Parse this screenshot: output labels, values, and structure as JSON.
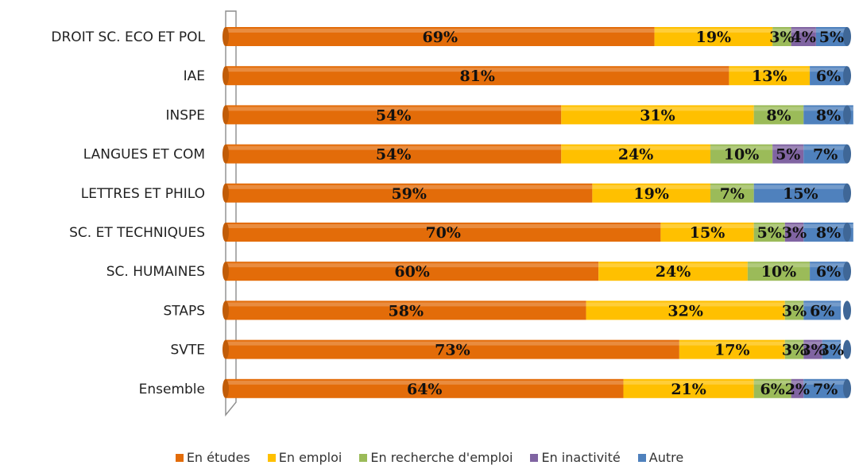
{
  "chart_data": {
    "type": "bar",
    "orientation": "horizontal",
    "stacked": true,
    "categories": [
      "DROIT SC. ECO ET POL",
      "IAE",
      "INSPE",
      "LANGUES ET COM",
      "LETTRES ET PHILO",
      "SC. ET TECHNIQUES",
      "SC. HUMAINES",
      "STAPS",
      "SVTE",
      "Ensemble"
    ],
    "series": [
      {
        "name": "En études",
        "color": "#E36C09",
        "values": [
          69,
          81,
          54,
          54,
          59,
          70,
          60,
          58,
          73,
          64
        ],
        "labels": [
          "69%",
          "81%",
          "54%",
          "54%",
          "59%",
          "70%",
          "60%",
          "58%",
          "73%",
          "64%"
        ]
      },
      {
        "name": "En emploi",
        "color": "#FFC000",
        "values": [
          19,
          13,
          31,
          24,
          19,
          15,
          24,
          32,
          17,
          21
        ],
        "labels": [
          "19%",
          "13%",
          "31%",
          "24%",
          "19%",
          "15%",
          "24%",
          "32%",
          "17%",
          "21%"
        ]
      },
      {
        "name": "En recherche d'emploi",
        "color": "#9BBB59",
        "values": [
          3,
          0,
          8,
          10,
          7,
          5,
          10,
          3,
          3,
          6
        ],
        "labels": [
          "3%",
          "",
          "8%",
          "10%",
          "7%",
          "5%",
          "10%",
          "3%",
          "3%",
          "6%"
        ]
      },
      {
        "name": "En inactivité",
        "color": "#8064A2",
        "values": [
          4,
          0,
          0,
          5,
          0,
          3,
          0,
          0,
          3,
          2
        ],
        "labels": [
          "4%",
          "",
          "",
          "5%",
          "",
          "3%",
          "",
          "",
          "3%",
          "2%"
        ]
      },
      {
        "name": "Autre",
        "color": "#4F81BD",
        "values": [
          5,
          6,
          8,
          7,
          15,
          8,
          6,
          6,
          3,
          7
        ],
        "labels": [
          "5%",
          "6%",
          "8%",
          "7%",
          "15%",
          "8%",
          "6%",
          "6%",
          "3%",
          "7%"
        ]
      }
    ],
    "xlim": [
      0,
      100
    ],
    "grid": false,
    "legend_position": "bottom"
  }
}
